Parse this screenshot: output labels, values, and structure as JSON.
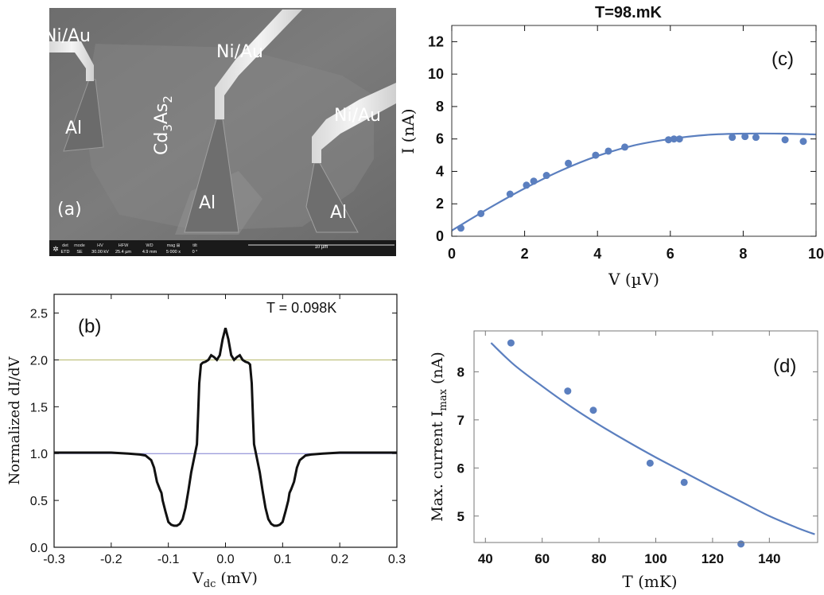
{
  "colors": {
    "fit_blue": "#5b7fbf",
    "black": "#111111",
    "sem_gray": "#7a7a7a",
    "ref_olive": "#b5b86a",
    "ref_blue": "#7f7fd0"
  },
  "panel_a": {
    "panel_label": "(a)",
    "labels": {
      "niau_1": "Ni/Au",
      "niau_2": "Ni/Au",
      "niau_3": "Ni/Au",
      "al_1": "Al",
      "al_2": "Al",
      "al_3": "Al",
      "material_base": "Cd",
      "material_sub1": "3",
      "material_mid": "As",
      "material_sub2": "2"
    },
    "info_bar": {
      "headers": [
        "det",
        "mode",
        "HV",
        "HFW",
        "WD",
        "mag ⊞",
        "tilt"
      ],
      "values": [
        "ETD",
        "SE",
        "30.00 kV",
        "25.4 µm",
        "4.9 mm",
        "5 000 x",
        "0 °"
      ],
      "scale_label": "10 µm"
    }
  },
  "chart_data": [
    {
      "id": "b",
      "type": "line",
      "panel_label": "(b)",
      "annotation": "T = 0.098K",
      "xlabel_base": "V",
      "xlabel_sub": "dc",
      "xlabel_unit": " (mV)",
      "ylabel": "Normalized dI/dV",
      "xlim": [
        -0.3,
        0.3
      ],
      "ylim": [
        0.0,
        2.7
      ],
      "xticks": [
        -0.3,
        -0.2,
        -0.1,
        0.0,
        0.1,
        0.2,
        0.3
      ],
      "xtick_labels": [
        "-0.3",
        "-0.2",
        "-0.1",
        "0.0",
        "0.1",
        "0.2",
        "0.3"
      ],
      "yticks": [
        0.0,
        0.5,
        1.0,
        1.5,
        2.0,
        2.5
      ],
      "ytick_labels": [
        "0.0",
        "0.5",
        "1.0",
        "1.5",
        "2.0",
        "2.5"
      ],
      "ref_lines": [
        2.0,
        1.0
      ],
      "x": [
        0.0,
        0.005,
        0.01,
        0.015,
        0.02,
        0.025,
        0.03,
        0.035,
        0.04,
        0.043,
        0.046,
        0.048,
        0.05,
        0.055,
        0.06,
        0.065,
        0.07,
        0.075,
        0.08,
        0.085,
        0.09,
        0.095,
        0.1,
        0.105,
        0.11,
        0.112,
        0.115,
        0.12,
        0.125,
        0.13,
        0.14,
        0.15,
        0.17,
        0.2,
        0.25,
        0.3
      ],
      "y": [
        2.34,
        2.22,
        2.05,
        2.0,
        2.03,
        2.05,
        2.0,
        1.98,
        1.97,
        1.95,
        1.75,
        1.4,
        1.1,
        0.95,
        0.8,
        0.6,
        0.42,
        0.3,
        0.25,
        0.23,
        0.23,
        0.24,
        0.27,
        0.38,
        0.5,
        0.58,
        0.62,
        0.7,
        0.85,
        0.93,
        0.98,
        0.99,
        1.0,
        1.01,
        1.01,
        1.01
      ]
    },
    {
      "id": "c",
      "type": "scatter",
      "panel_label": "(c)",
      "title": "T=98.mK",
      "xlabel": "V (µV)",
      "ylabel": "I (nA)",
      "xlim": [
        0,
        10
      ],
      "ylim": [
        0,
        13
      ],
      "xticks": [
        0,
        2,
        4,
        6,
        8,
        10
      ],
      "xtick_labels": [
        "0",
        "2",
        "4",
        "6",
        "8",
        "10"
      ],
      "yticks": [
        0,
        2,
        4,
        6,
        8,
        10,
        12
      ],
      "ytick_labels": [
        "0",
        "2",
        "4",
        "6",
        "8",
        "10",
        "12"
      ],
      "points_x": [
        0.25,
        0.8,
        1.6,
        2.05,
        2.25,
        2.6,
        3.2,
        3.95,
        4.3,
        4.75,
        5.95,
        6.1,
        6.25,
        7.7,
        8.05,
        8.35,
        9.15,
        9.65
      ],
      "points_y": [
        0.5,
        1.4,
        2.6,
        3.15,
        3.4,
        3.75,
        4.5,
        5.0,
        5.25,
        5.5,
        5.95,
        6.0,
        6.0,
        6.1,
        6.15,
        6.1,
        5.95,
        5.85
      ],
      "fit_x": [
        0,
        1,
        2,
        3,
        4,
        5,
        6,
        7,
        8,
        9,
        10
      ],
      "fit_y": [
        0.35,
        1.7,
        2.95,
        4.05,
        4.95,
        5.6,
        6.0,
        6.25,
        6.33,
        6.33,
        6.28
      ]
    },
    {
      "id": "d",
      "type": "scatter",
      "panel_label": "(d)",
      "xlabel": "T (mK)",
      "ylabel_base": "Max. current I",
      "ylabel_sub": "max",
      "ylabel_unit": " (nA)",
      "xlim": [
        36,
        157
      ],
      "ylim": [
        4.45,
        8.85
      ],
      "xticks": [
        40,
        60,
        80,
        100,
        120,
        140
      ],
      "xtick_labels": [
        "40",
        "60",
        "80",
        "100",
        "120",
        "140"
      ],
      "yticks": [
        5,
        6,
        7,
        8
      ],
      "ytick_labels": [
        "5",
        "6",
        "7",
        "8"
      ],
      "points_x": [
        49,
        69,
        78,
        98,
        110,
        130
      ],
      "points_y": [
        8.6,
        7.6,
        7.2,
        6.1,
        5.7,
        4.42
      ],
      "fit_x": [
        42,
        50,
        60,
        70,
        80,
        90,
        100,
        110,
        120,
        130,
        140,
        150,
        156
      ],
      "fit_y": [
        8.6,
        8.15,
        7.7,
        7.28,
        6.9,
        6.55,
        6.22,
        5.91,
        5.6,
        5.3,
        5.0,
        4.75,
        4.62
      ]
    }
  ]
}
